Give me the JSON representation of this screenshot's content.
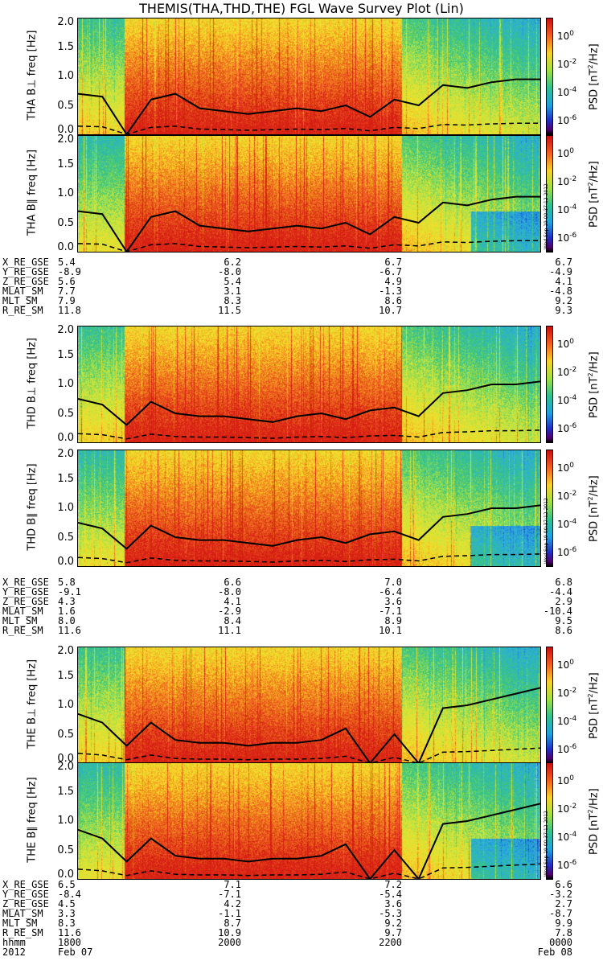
{
  "chart_data": {
    "type": "heatmap",
    "title": "THEMIS(THA,THD,THE) FGL Wave Survey Plot (Lin)",
    "colorbar_label": "PSD [nT^2/Hz]",
    "colorbar_ticks": [
      "10^0",
      "10^-2",
      "10^-4",
      "10^-6"
    ],
    "y_ticks": [
      "2.0",
      "1.5",
      "1.0",
      "0.5",
      "0.0"
    ],
    "ylim": [
      0,
      2.0
    ],
    "timestamp": "Wed Sep 19 00:37:12 2012",
    "panels": [
      {
        "probe": "THA",
        "label": "THA B⊥",
        "unit": "freq [Hz]",
        "gyro": [
          0.7,
          0.65,
          0.0,
          0.6,
          0.7,
          0.45,
          0.4,
          0.35,
          0.4,
          0.45,
          0.4,
          0.5,
          0.3,
          0.6,
          0.5,
          0.85,
          0.8,
          0.9,
          0.95,
          0.95
        ]
      },
      {
        "probe": "THA",
        "label": "THA B∥",
        "unit": "freq [Hz]",
        "gyro": [
          0.7,
          0.65,
          0.0,
          0.6,
          0.7,
          0.45,
          0.4,
          0.35,
          0.4,
          0.45,
          0.4,
          0.5,
          0.3,
          0.6,
          0.5,
          0.85,
          0.8,
          0.9,
          0.95,
          0.95
        ]
      },
      {
        "probe": "THD",
        "label": "THD B⊥",
        "unit": "freq [Hz]",
        "gyro": [
          0.75,
          0.65,
          0.3,
          0.7,
          0.5,
          0.45,
          0.45,
          0.4,
          0.35,
          0.45,
          0.5,
          0.4,
          0.55,
          0.6,
          0.45,
          0.85,
          0.9,
          1.0,
          1.0,
          1.05
        ]
      },
      {
        "probe": "THD",
        "label": "THD B∥",
        "unit": "freq [Hz]",
        "gyro": [
          0.75,
          0.65,
          0.3,
          0.7,
          0.5,
          0.45,
          0.45,
          0.4,
          0.35,
          0.45,
          0.5,
          0.4,
          0.55,
          0.6,
          0.45,
          0.85,
          0.9,
          1.0,
          1.0,
          1.05
        ]
      },
      {
        "probe": "THE",
        "label": "THE B⊥",
        "unit": "freq [Hz]",
        "gyro": [
          0.85,
          0.7,
          0.3,
          0.7,
          0.4,
          0.35,
          0.35,
          0.3,
          0.35,
          0.35,
          0.4,
          0.6,
          0.0,
          0.5,
          0.0,
          0.95,
          1.0,
          1.1,
          1.2,
          1.3
        ]
      },
      {
        "probe": "THE",
        "label": "THE B∥",
        "unit": "freq [Hz]",
        "gyro": [
          0.85,
          0.7,
          0.3,
          0.7,
          0.4,
          0.35,
          0.35,
          0.3,
          0.35,
          0.35,
          0.4,
          0.6,
          0.0,
          0.5,
          0.0,
          0.95,
          1.0,
          1.1,
          1.2,
          1.3
        ]
      }
    ],
    "ephemeris": [
      {
        "rows": [
          {
            "label": "X_RE_GSE",
            "values": [
              "5.4",
              "6.2",
              "6.7",
              "6.7"
            ]
          },
          {
            "label": "Y_RE_GSE",
            "values": [
              "-8.9",
              "-8.0",
              "-6.7",
              "-4.9"
            ]
          },
          {
            "label": "Z_RE_GSE",
            "values": [
              "5.6",
              "5.4",
              "4.9",
              "4.1"
            ]
          },
          {
            "label": "MLAT_SM",
            "values": [
              "7.7",
              "3.1",
              "-1.3",
              "-4.8"
            ]
          },
          {
            "label": "MLT_SM",
            "values": [
              "7.9",
              "8.3",
              "8.6",
              "9.2"
            ]
          },
          {
            "label": "R_RE_SM",
            "values": [
              "11.8",
              "11.5",
              "10.7",
              "9.3"
            ]
          }
        ]
      },
      {
        "rows": [
          {
            "label": "X_RE_GSE",
            "values": [
              "5.8",
              "6.6",
              "7.0",
              "6.8"
            ]
          },
          {
            "label": "Y_RE_GSE",
            "values": [
              "-9.1",
              "-8.0",
              "-6.4",
              "-4.4"
            ]
          },
          {
            "label": "Z_RE_GSE",
            "values": [
              "4.3",
              "4.1",
              "3.6",
              "2.9"
            ]
          },
          {
            "label": "MLAT_SM",
            "values": [
              "1.6",
              "-2.9",
              "-7.1",
              "-10.4"
            ]
          },
          {
            "label": "MLT_SM",
            "values": [
              "8.0",
              "8.4",
              "8.9",
              "9.5"
            ]
          },
          {
            "label": "R_RE_SM",
            "values": [
              "11.6",
              "11.1",
              "10.1",
              "8.6"
            ]
          }
        ]
      },
      {
        "rows": [
          {
            "label": "X_RE_GSE",
            "values": [
              "6.5",
              "7.1",
              "7.2",
              "6.6"
            ]
          },
          {
            "label": "Y_RE_GSE",
            "values": [
              "-8.4",
              "-7.1",
              "-5.4",
              "-3.2"
            ]
          },
          {
            "label": "Z_RE_GSE",
            "values": [
              "4.5",
              "4.2",
              "3.6",
              "2.7"
            ]
          },
          {
            "label": "MLAT_SM",
            "values": [
              "3.3",
              "-1.1",
              "-5.3",
              "-8.7"
            ]
          },
          {
            "label": "MLT_SM",
            "values": [
              "8.3",
              "8.7",
              "9.2",
              "9.9"
            ]
          },
          {
            "label": "R_RE_SM",
            "values": [
              "11.6",
              "10.9",
              "9.7",
              "7.8"
            ]
          },
          {
            "label": "hhmm",
            "values": [
              "1800",
              "2000",
              "2200",
              "0000"
            ]
          },
          {
            "label": "2012",
            "values": [
              "Feb 07",
              "",
              "",
              "Feb 08"
            ]
          }
        ]
      }
    ]
  }
}
